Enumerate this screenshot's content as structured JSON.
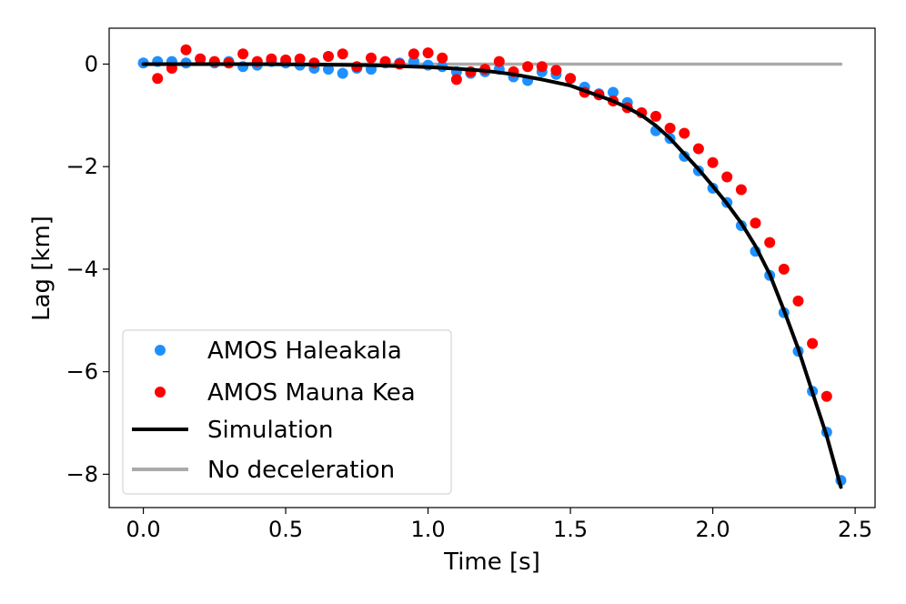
{
  "chart_data": {
    "type": "scatter",
    "xlabel": "Time [s]",
    "ylabel": "Lag [km]",
    "xlim": [
      -0.12,
      2.57
    ],
    "ylim": [
      -8.65,
      0.7
    ],
    "x_ticks": [
      0.0,
      0.5,
      1.0,
      1.5,
      2.0,
      2.5
    ],
    "x_tick_labels": [
      "0.0",
      "0.5",
      "1.0",
      "1.5",
      "2.0",
      "2.5"
    ],
    "y_ticks": [
      0,
      -2,
      -4,
      -6,
      -8
    ],
    "y_tick_labels": [
      "0",
      "−2",
      "−4",
      "−6",
      "−8"
    ],
    "legend_position": "lower-left",
    "series": [
      {
        "name": "AMOS Haleakala",
        "kind": "scatter",
        "color": "#1E90FF",
        "points": [
          [
            0.0,
            0.02
          ],
          [
            0.05,
            0.05
          ],
          [
            0.1,
            0.05
          ],
          [
            0.15,
            0.02
          ],
          [
            0.2,
            0.1
          ],
          [
            0.25,
            0.02
          ],
          [
            0.3,
            0.05
          ],
          [
            0.35,
            -0.05
          ],
          [
            0.4,
            -0.02
          ],
          [
            0.45,
            0.05
          ],
          [
            0.5,
            0.02
          ],
          [
            0.55,
            -0.02
          ],
          [
            0.6,
            -0.08
          ],
          [
            0.65,
            -0.1
          ],
          [
            0.7,
            -0.18
          ],
          [
            0.75,
            -0.08
          ],
          [
            0.8,
            -0.1
          ],
          [
            0.85,
            0.02
          ],
          [
            0.9,
            0.02
          ],
          [
            0.95,
            0.05
          ],
          [
            1.0,
            -0.02
          ],
          [
            1.05,
            -0.05
          ],
          [
            1.1,
            -0.15
          ],
          [
            1.15,
            -0.18
          ],
          [
            1.2,
            -0.15
          ],
          [
            1.25,
            -0.1
          ],
          [
            1.3,
            -0.25
          ],
          [
            1.35,
            -0.32
          ],
          [
            1.4,
            -0.15
          ],
          [
            1.45,
            -0.2
          ],
          [
            1.5,
            -0.28
          ],
          [
            1.55,
            -0.45
          ],
          [
            1.6,
            -0.58
          ],
          [
            1.65,
            -0.55
          ],
          [
            1.7,
            -0.75
          ],
          [
            1.75,
            -0.95
          ],
          [
            1.8,
            -1.3
          ],
          [
            1.85,
            -1.45
          ],
          [
            1.9,
            -1.8
          ],
          [
            1.95,
            -2.08
          ],
          [
            2.0,
            -2.42
          ],
          [
            2.05,
            -2.7
          ],
          [
            2.1,
            -3.15
          ],
          [
            2.15,
            -3.65
          ],
          [
            2.2,
            -4.12
          ],
          [
            2.25,
            -4.85
          ],
          [
            2.3,
            -5.6
          ],
          [
            2.35,
            -6.38
          ],
          [
            2.4,
            -7.18
          ],
          [
            2.45,
            -8.12
          ]
        ]
      },
      {
        "name": "AMOS Mauna Kea",
        "kind": "scatter",
        "color": "#FF0000",
        "points": [
          [
            0.05,
            -0.28
          ],
          [
            0.1,
            -0.08
          ],
          [
            0.15,
            0.28
          ],
          [
            0.2,
            0.1
          ],
          [
            0.25,
            0.05
          ],
          [
            0.3,
            0.02
          ],
          [
            0.35,
            0.2
          ],
          [
            0.4,
            0.05
          ],
          [
            0.45,
            0.1
          ],
          [
            0.5,
            0.08
          ],
          [
            0.55,
            0.1
          ],
          [
            0.6,
            0.02
          ],
          [
            0.65,
            0.15
          ],
          [
            0.7,
            0.2
          ],
          [
            0.75,
            -0.05
          ],
          [
            0.8,
            0.12
          ],
          [
            0.85,
            0.05
          ],
          [
            0.9,
            0.0
          ],
          [
            0.95,
            0.2
          ],
          [
            1.0,
            0.22
          ],
          [
            1.05,
            0.12
          ],
          [
            1.1,
            -0.3
          ],
          [
            1.15,
            -0.15
          ],
          [
            1.2,
            -0.1
          ],
          [
            1.25,
            0.05
          ],
          [
            1.3,
            -0.15
          ],
          [
            1.35,
            -0.05
          ],
          [
            1.4,
            -0.05
          ],
          [
            1.45,
            -0.12
          ],
          [
            1.5,
            -0.28
          ],
          [
            1.55,
            -0.55
          ],
          [
            1.6,
            -0.6
          ],
          [
            1.65,
            -0.72
          ],
          [
            1.7,
            -0.85
          ],
          [
            1.75,
            -0.95
          ],
          [
            1.8,
            -1.02
          ],
          [
            1.85,
            -1.25
          ],
          [
            1.9,
            -1.35
          ],
          [
            1.95,
            -1.65
          ],
          [
            2.0,
            -1.92
          ],
          [
            2.05,
            -2.2
          ],
          [
            2.1,
            -2.45
          ],
          [
            2.15,
            -3.1
          ],
          [
            2.2,
            -3.48
          ],
          [
            2.25,
            -4.0
          ],
          [
            2.3,
            -4.62
          ],
          [
            2.35,
            -5.45
          ],
          [
            2.4,
            -6.48
          ]
        ]
      },
      {
        "name": "Simulation",
        "kind": "line",
        "color": "#000000",
        "points": [
          [
            0.0,
            0.0
          ],
          [
            0.2,
            0.0
          ],
          [
            0.4,
            0.0
          ],
          [
            0.6,
            -0.01
          ],
          [
            0.8,
            -0.02
          ],
          [
            0.9,
            -0.04
          ],
          [
            1.0,
            -0.06
          ],
          [
            1.1,
            -0.09
          ],
          [
            1.2,
            -0.13
          ],
          [
            1.3,
            -0.2
          ],
          [
            1.4,
            -0.3
          ],
          [
            1.5,
            -0.42
          ],
          [
            1.55,
            -0.52
          ],
          [
            1.6,
            -0.62
          ],
          [
            1.65,
            -0.72
          ],
          [
            1.7,
            -0.85
          ],
          [
            1.75,
            -1.0
          ],
          [
            1.8,
            -1.2
          ],
          [
            1.85,
            -1.45
          ],
          [
            1.9,
            -1.75
          ],
          [
            1.95,
            -2.05
          ],
          [
            2.0,
            -2.38
          ],
          [
            2.05,
            -2.72
          ],
          [
            2.1,
            -3.1
          ],
          [
            2.15,
            -3.55
          ],
          [
            2.2,
            -4.1
          ],
          [
            2.25,
            -4.8
          ],
          [
            2.3,
            -5.55
          ],
          [
            2.35,
            -6.4
          ],
          [
            2.4,
            -7.25
          ],
          [
            2.45,
            -8.25
          ]
        ]
      },
      {
        "name": "No deceleration",
        "kind": "line",
        "color": "#AAAAAA",
        "points": [
          [
            0.0,
            0.0
          ],
          [
            2.45,
            0.0
          ]
        ]
      }
    ]
  }
}
